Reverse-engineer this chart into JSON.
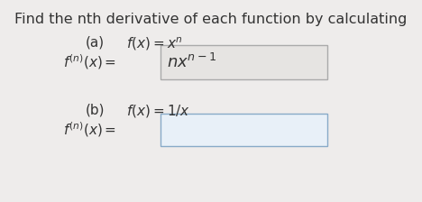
{
  "title": "Find the nth derivative of each function by calculating",
  "title_fontsize": 11.5,
  "title_color": "#333333",
  "background_color": "#eeeceb",
  "text_color": "#333333",
  "main_fontsize": 11.0,
  "box_edge_color_a": "#aaaaaa",
  "box_face_color_a": "#e6e4e2",
  "box_edge_color_b": "#88aac8",
  "box_face_color_b": "#e8f0f8"
}
